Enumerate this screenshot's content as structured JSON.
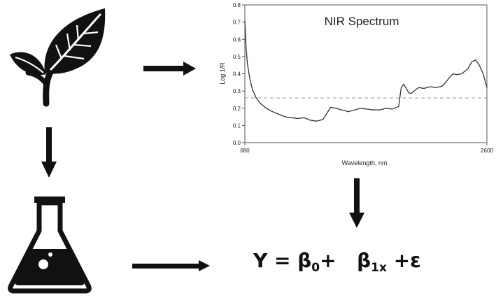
{
  "chart_data": {
    "type": "line",
    "title": "NIR Spectrum",
    "xlabel": "Wavelength, nm",
    "ylabel": "Log 1/R",
    "xlim": [
      680,
      2600
    ],
    "ylim": [
      0.0,
      0.8
    ],
    "x_ticks": [
      "680",
      "2600"
    ],
    "y_ticks": [
      "0.0",
      "0.1",
      "0.2",
      "0.3",
      "0.4",
      "0.5",
      "0.6",
      "0.7",
      "0.8"
    ],
    "reference_line": 0.26,
    "grid": false,
    "legend": "none",
    "x": [
      680,
      690,
      700,
      720,
      740,
      770,
      800,
      850,
      900,
      950,
      1000,
      1050,
      1100,
      1150,
      1200,
      1250,
      1300,
      1330,
      1360,
      1400,
      1450,
      1500,
      1550,
      1600,
      1650,
      1700,
      1750,
      1800,
      1850,
      1900,
      1920,
      1940,
      1960,
      1980,
      2000,
      2030,
      2060,
      2100,
      2150,
      2200,
      2250,
      2300,
      2330,
      2360,
      2400,
      2450,
      2480,
      2510,
      2540,
      2570,
      2600
    ],
    "y": [
      0.71,
      0.55,
      0.46,
      0.37,
      0.31,
      0.26,
      0.23,
      0.2,
      0.18,
      0.165,
      0.15,
      0.145,
      0.14,
      0.145,
      0.13,
      0.125,
      0.135,
      0.17,
      0.205,
      0.2,
      0.19,
      0.18,
      0.19,
      0.2,
      0.195,
      0.19,
      0.19,
      0.2,
      0.195,
      0.21,
      0.32,
      0.34,
      0.315,
      0.29,
      0.285,
      0.305,
      0.32,
      0.315,
      0.325,
      0.32,
      0.33,
      0.375,
      0.4,
      0.395,
      0.4,
      0.43,
      0.47,
      0.48,
      0.45,
      0.4,
      0.32
    ]
  },
  "equation": {
    "y": "Y",
    "equals": "=",
    "beta": "β",
    "sub0": "0",
    "sub1x": "1x",
    "plus": "+",
    "epsilon": "ε"
  },
  "icons": [
    "plant-icon",
    "flask-icon",
    "arrow-right-icon",
    "arrow-down-icon"
  ]
}
